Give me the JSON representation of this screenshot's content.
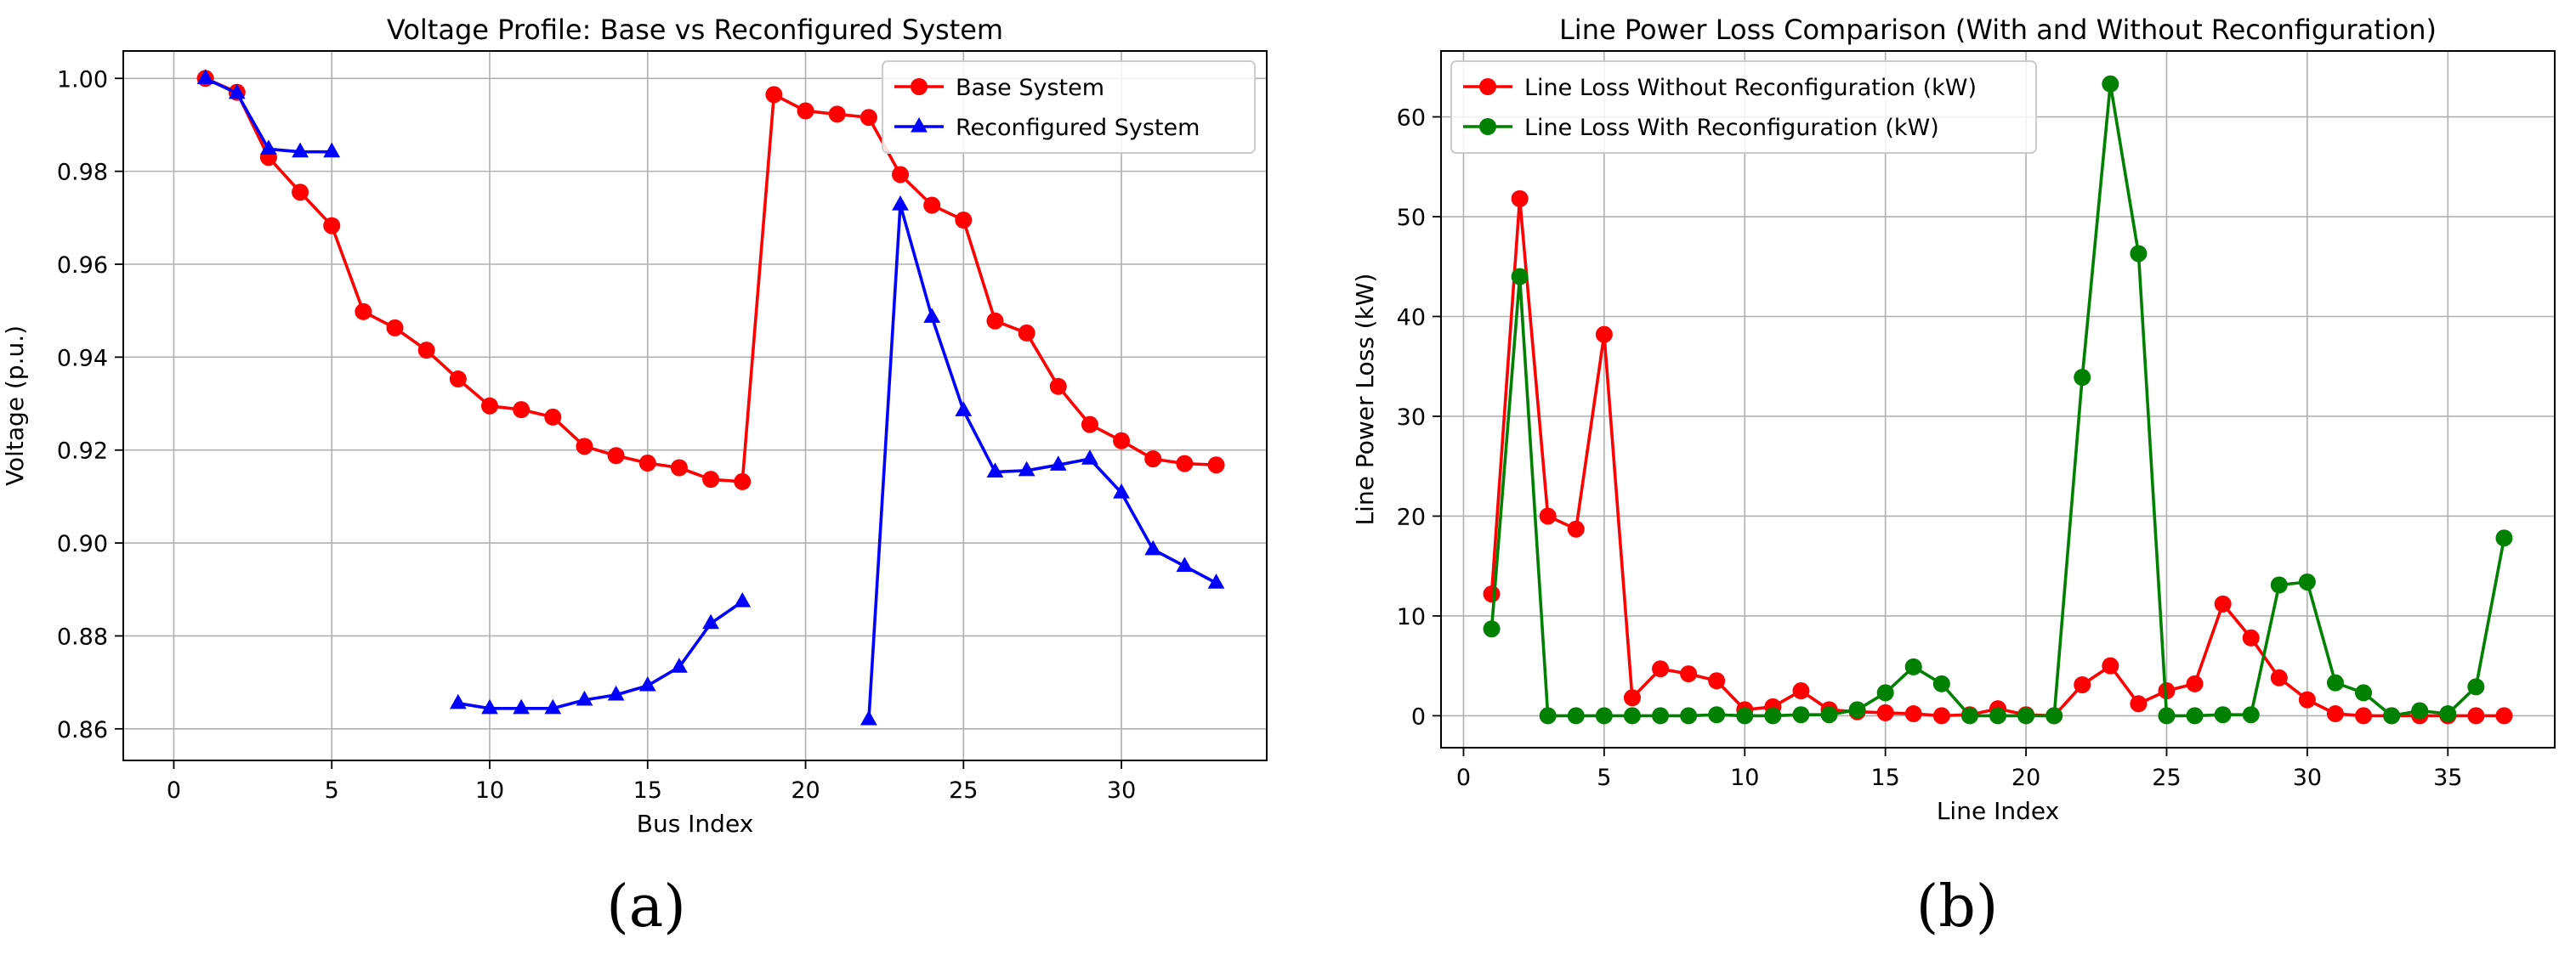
{
  "panel_labels": {
    "a": "(a)",
    "b": "(b)"
  },
  "chart_data": [
    {
      "type": "line",
      "title": "Voltage Profile: Base vs Reconfigured System",
      "xlabel": "Bus Index",
      "ylabel": "Voltage (p.u.)",
      "xlim": [
        -1.6,
        34.6
      ],
      "ylim": [
        0.8532,
        1.0059
      ],
      "xticks": [
        0,
        5,
        10,
        15,
        20,
        25,
        30
      ],
      "yticks": [
        0.86,
        0.88,
        0.9,
        0.92,
        0.94,
        0.96,
        0.98,
        1.0
      ],
      "ytick_labels": [
        "0.86",
        "0.88",
        "0.90",
        "0.92",
        "0.94",
        "0.96",
        "0.98",
        "1.00"
      ],
      "grid": true,
      "legend_position": "top-right",
      "series": [
        {
          "name": "Base System",
          "color": "#ff0000",
          "marker": "circle",
          "x": [
            1,
            2,
            3,
            4,
            5,
            6,
            7,
            8,
            9,
            10,
            11,
            12,
            13,
            14,
            15,
            16,
            17,
            18,
            19,
            20,
            21,
            22,
            23,
            24,
            25,
            26,
            27,
            28,
            29,
            30,
            31,
            32,
            33
          ],
          "y": [
            1.0,
            0.997,
            0.983,
            0.9755,
            0.9683,
            0.9498,
            0.9463,
            0.9415,
            0.9353,
            0.9295,
            0.9287,
            0.9271,
            0.9208,
            0.9188,
            0.9172,
            0.9162,
            0.9137,
            0.9132,
            0.9965,
            0.993,
            0.9923,
            0.9916,
            0.9793,
            0.9727,
            0.9695,
            0.9478,
            0.9452,
            0.9337,
            0.9255,
            0.922,
            0.9181,
            0.9171,
            0.9168
          ]
        },
        {
          "name": "Reconfigured System",
          "color": "#0000ff",
          "marker": "triangle",
          "segments": [
            {
              "x": [
                1,
                2,
                3,
                4,
                5
              ],
              "y": [
                1.0,
                0.9968,
                0.9848,
                0.9842,
                0.9842
              ]
            },
            {
              "x": [
                9,
                10,
                11,
                12,
                13,
                14,
                15,
                16,
                17,
                18
              ],
              "y": [
                0.8655,
                0.8644,
                0.8644,
                0.8644,
                0.8662,
                0.8673,
                0.8693,
                0.8733,
                0.8827,
                0.8874
              ]
            },
            {
              "x": [
                22,
                23,
                24,
                25,
                26,
                27,
                28,
                29,
                30,
                31,
                32,
                33
              ],
              "y": [
                0.862,
                0.9728,
                0.9486,
                0.9285,
                0.9153,
                0.9156,
                0.9168,
                0.9181,
                0.9108,
                0.8986,
                0.895,
                0.8914
              ]
            }
          ]
        }
      ]
    },
    {
      "type": "line",
      "title": "Line Power Loss Comparison (With and Without Reconfiguration)",
      "xlabel": "Line Index",
      "ylabel": "Line Power Loss (kW)",
      "xlim": [
        -0.8,
        38.8
      ],
      "ylim": [
        -3.2,
        66.6
      ],
      "xticks": [
        0,
        5,
        10,
        15,
        20,
        25,
        30,
        35
      ],
      "yticks": [
        0,
        10,
        20,
        30,
        40,
        50,
        60
      ],
      "grid": true,
      "legend_position": "top-left",
      "series": [
        {
          "name": "Line Loss Without Reconfiguration (kW)",
          "color": "#ff0000",
          "marker": "circle",
          "x": [
            1,
            2,
            3,
            4,
            5,
            6,
            7,
            8,
            9,
            10,
            11,
            12,
            13,
            14,
            15,
            16,
            17,
            18,
            19,
            20,
            21,
            22,
            23,
            24,
            25,
            26,
            27,
            28,
            29,
            30,
            31,
            32,
            33,
            34,
            35,
            36,
            37
          ],
          "y": [
            12.2,
            51.8,
            20.0,
            18.7,
            38.2,
            1.8,
            4.7,
            4.2,
            3.5,
            0.6,
            0.9,
            2.5,
            0.6,
            0.4,
            0.3,
            0.2,
            0.0,
            0.1,
            0.7,
            0.1,
            0.0,
            3.1,
            5.0,
            1.2,
            2.5,
            3.2,
            11.2,
            7.8,
            3.8,
            1.6,
            0.2,
            0.0,
            0.0,
            0.0,
            0.0,
            0.0,
            0.0
          ]
        },
        {
          "name": "Line Loss With Reconfiguration (kW)",
          "color": "#008000",
          "marker": "circle",
          "x": [
            1,
            2,
            3,
            4,
            5,
            6,
            7,
            8,
            9,
            10,
            11,
            12,
            13,
            14,
            15,
            16,
            17,
            18,
            19,
            20,
            21,
            22,
            23,
            24,
            25,
            26,
            27,
            28,
            29,
            30,
            31,
            32,
            33,
            34,
            35,
            36,
            37
          ],
          "y": [
            8.7,
            44.0,
            0.0,
            0.0,
            0.0,
            0.0,
            0.0,
            0.0,
            0.1,
            0.0,
            0.0,
            0.1,
            0.1,
            0.6,
            2.3,
            4.9,
            3.2,
            0.0,
            0.0,
            0.0,
            0.0,
            33.9,
            63.3,
            46.3,
            0.0,
            0.0,
            0.1,
            0.1,
            13.1,
            13.4,
            3.3,
            2.3,
            0.0,
            0.5,
            0.2,
            2.9,
            17.8
          ]
        }
      ]
    }
  ]
}
